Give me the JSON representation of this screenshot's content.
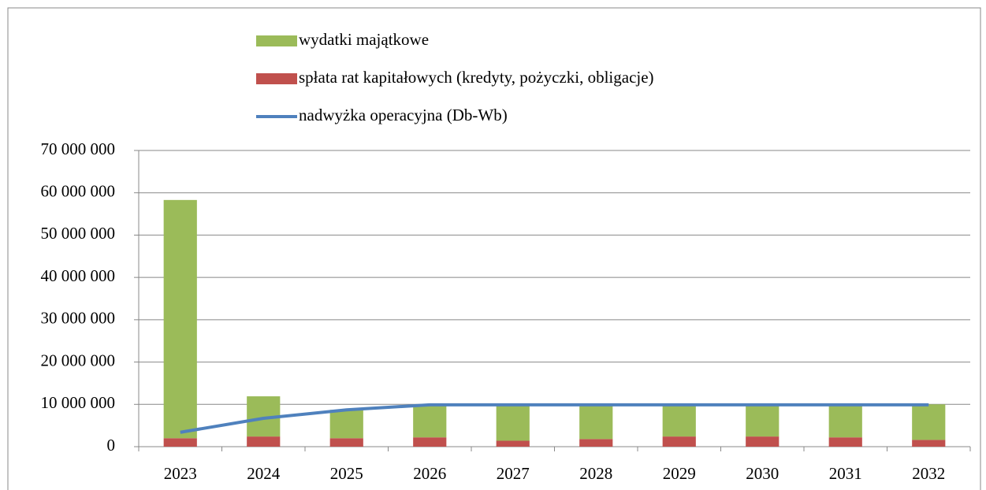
{
  "chart_data": {
    "type": "bar",
    "stacked": true,
    "categories": [
      "2023",
      "2024",
      "2025",
      "2026",
      "2027",
      "2028",
      "2029",
      "2030",
      "2031",
      "2032"
    ],
    "series": [
      {
        "name": "wydatki majątkowe",
        "type": "bar",
        "color": "#9bbb59",
        "values": [
          56300000,
          9500000,
          6700000,
          7800000,
          8600000,
          8200000,
          7600000,
          7600000,
          7800000,
          8400000
        ]
      },
      {
        "name": "spłata rat kapitałowych (kredyty, pożyczki, obligacje)",
        "type": "bar",
        "color": "#c0504d",
        "values": [
          2000000,
          2400000,
          2000000,
          2200000,
          1400000,
          1800000,
          2400000,
          2400000,
          2200000,
          1600000
        ]
      },
      {
        "name": "nadwyżka operacyjna (Db-Wb)",
        "type": "line",
        "color": "#4f81bd",
        "values": [
          3400000,
          6700000,
          8700000,
          9900000,
          9900000,
          9900000,
          9900000,
          9900000,
          9900000,
          9900000
        ]
      }
    ],
    "ylim": [
      0,
      70000000
    ],
    "yticks": [
      0,
      {
        "value": 10000000,
        "label": "10 000 000"
      },
      {
        "value": 20000000,
        "label": "20 000 000"
      },
      {
        "value": 30000000,
        "label": "30 000 000"
      },
      {
        "value": 40000000,
        "label": "40 000 000"
      },
      {
        "value": 50000000,
        "label": "50 000 000"
      },
      {
        "value": 60000000,
        "label": "60 000 000"
      },
      {
        "value": 70000000,
        "label": "70 000 000"
      }
    ],
    "grid": true,
    "legend": "top"
  }
}
